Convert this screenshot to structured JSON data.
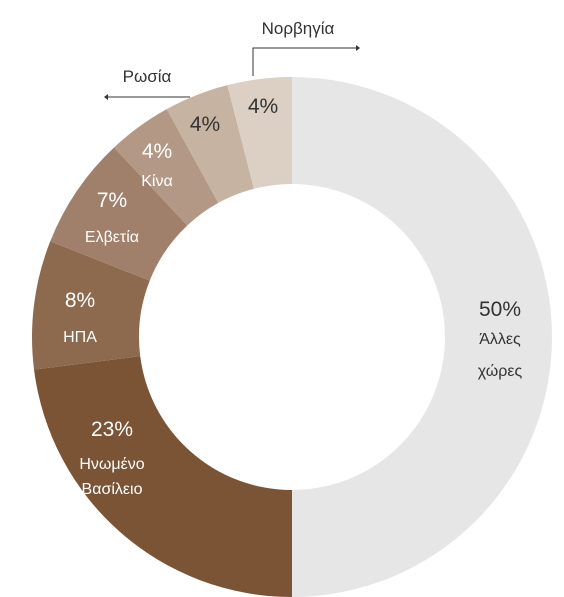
{
  "chart_data": {
    "type": "pie",
    "donut": true,
    "title": "",
    "slices": [
      {
        "name": "Άλλες χώρες",
        "value": 50,
        "label": "50%",
        "name_lines": [
          "Άλλες",
          "χώρες"
        ],
        "color": "#e6e6e7",
        "text_color": "#333333"
      },
      {
        "name": "Ηνωμένο Βασίλειο",
        "value": 23,
        "label": "23%",
        "name_lines": [
          "Ηνωμένο",
          "Βασίλειο"
        ],
        "color": "#7b5335",
        "text_color": "#ffffff"
      },
      {
        "name": "ΗΠΑ",
        "value": 8,
        "label": "8%",
        "name_lines": [
          "ΗΠΑ"
        ],
        "color": "#8d6a4e",
        "text_color": "#ffffff"
      },
      {
        "name": "Ελβετία",
        "value": 7,
        "label": "7%",
        "name_lines": [
          "Ελβετία"
        ],
        "color": "#a0806a",
        "text_color": "#ffffff"
      },
      {
        "name": "Κίνα",
        "value": 4,
        "label": "4%",
        "name_lines": [
          "Κίνα"
        ],
        "color": "#b39985",
        "text_color": "#ffffff"
      },
      {
        "name": "Ρωσία",
        "value": 4,
        "label": "4%",
        "name_lines": [],
        "color": "#c6b3a1",
        "text_color": "#333333"
      },
      {
        "name": "Νορβηγία",
        "value": 4,
        "label": "4%",
        "name_lines": [],
        "color": "#dccfc4",
        "text_color": "#333333"
      }
    ],
    "external_labels": [
      {
        "text": "Ρωσία",
        "slice": 5
      },
      {
        "text": "Νορβηγία",
        "slice": 6
      }
    ]
  }
}
